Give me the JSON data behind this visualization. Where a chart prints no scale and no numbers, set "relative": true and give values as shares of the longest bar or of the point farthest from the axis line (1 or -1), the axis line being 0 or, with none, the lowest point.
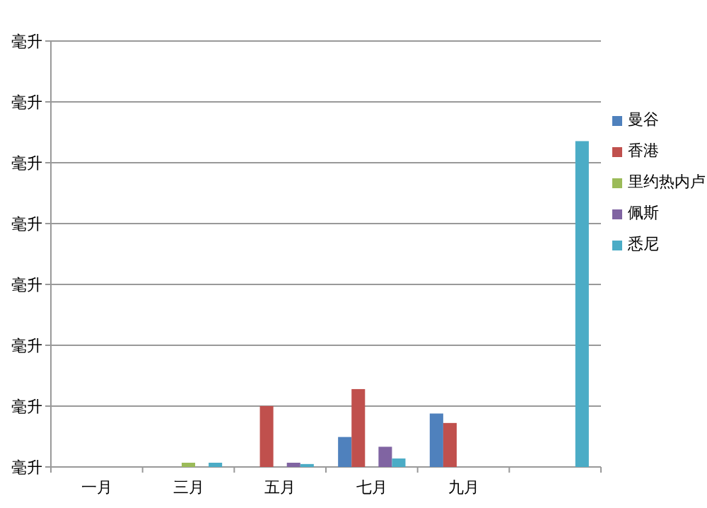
{
  "chart_data": {
    "type": "bar",
    "relative": true,
    "categories": [
      "一月",
      "三月",
      "五月",
      "七月",
      "九月",
      null
    ],
    "series": [
      {
        "name": "曼谷",
        "color": "#4f81bd",
        "values": [
          0,
          0,
          0,
          0.092,
          0.164,
          null
        ]
      },
      {
        "name": "香港",
        "color": "#c0504d",
        "values": [
          0,
          0,
          0.187,
          0.239,
          0.135,
          null
        ]
      },
      {
        "name": "里约热内卢",
        "color": "#9bbb59",
        "values": [
          0,
          0.013,
          0,
          0,
          0,
          null
        ]
      },
      {
        "name": "佩斯",
        "color": "#8064a2",
        "values": [
          0,
          0,
          0.013,
          0.062,
          0,
          null
        ]
      },
      {
        "name": "悉尼",
        "color": "#4bacc6",
        "values": [
          0,
          0.013,
          0.009,
          0.026,
          0,
          1
        ]
      }
    ],
    "annotations": [
      "毫升",
      "毫升",
      "毫升",
      "毫升",
      "毫升",
      "毫升",
      "毫升",
      "毫升"
    ],
    "grid": "y",
    "legend": "right"
  }
}
